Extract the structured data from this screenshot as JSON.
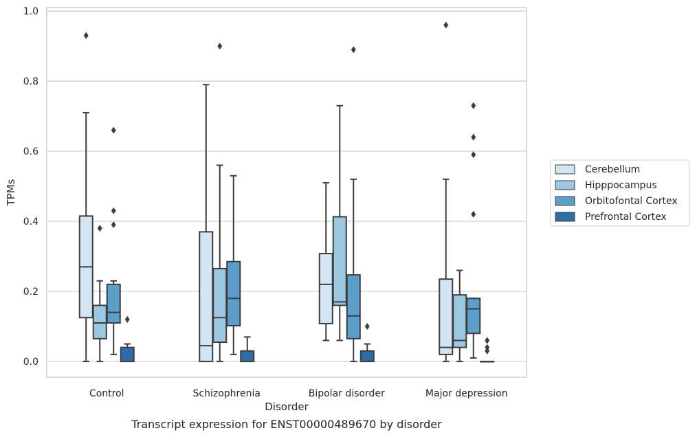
{
  "caption": "Transcript expression for ENST00000489670 by disorder",
  "chart_data": {
    "type": "box",
    "title": "",
    "xlabel": "Disorder",
    "ylabel": "TPMs",
    "ylim": [
      -0.045,
      1.01
    ],
    "yticks": [
      "0.0",
      "0.2",
      "0.4",
      "0.6",
      "0.8",
      "1.0"
    ],
    "grid": "horizontal",
    "legend_position": "right",
    "categories": [
      "Control",
      "Schizophrenia",
      "Bipolar disorder",
      "Major depression"
    ],
    "series": [
      {
        "name": "Cerebellum",
        "color": "#d3e4f3",
        "boxes": [
          {
            "whislo": 0.0,
            "q1": 0.125,
            "med": 0.27,
            "q3": 0.415,
            "whishi": 0.71,
            "fliers": [
              0.93
            ]
          },
          {
            "whislo": 0.0,
            "q1": 0.0,
            "med": 0.045,
            "q3": 0.37,
            "whishi": 0.79,
            "fliers": []
          },
          {
            "whislo": 0.06,
            "q1": 0.108,
            "med": 0.22,
            "q3": 0.308,
            "whishi": 0.51,
            "fliers": []
          },
          {
            "whislo": 0.0,
            "q1": 0.02,
            "med": 0.04,
            "q3": 0.235,
            "whishi": 0.52,
            "fliers": [
              0.96
            ]
          }
        ]
      },
      {
        "name": "Hipppocampus",
        "color": "#9cc7e0",
        "boxes": [
          {
            "whislo": 0.0,
            "q1": 0.065,
            "med": 0.11,
            "q3": 0.16,
            "whishi": 0.23,
            "fliers": [
              0.38
            ]
          },
          {
            "whislo": 0.0,
            "q1": 0.055,
            "med": 0.125,
            "q3": 0.265,
            "whishi": 0.56,
            "fliers": [
              0.9
            ]
          },
          {
            "whislo": 0.06,
            "q1": 0.16,
            "med": 0.17,
            "q3": 0.413,
            "whishi": 0.73,
            "fliers": []
          },
          {
            "whislo": 0.0,
            "q1": 0.04,
            "med": 0.06,
            "q3": 0.19,
            "whishi": 0.26,
            "fliers": []
          }
        ]
      },
      {
        "name": "Orbitofontal Cortex",
        "color": "#5a9ec9",
        "boxes": [
          {
            "whislo": 0.02,
            "q1": 0.11,
            "med": 0.14,
            "q3": 0.22,
            "whishi": 0.23,
            "fliers": [
              0.39,
              0.43,
              0.66
            ]
          },
          {
            "whislo": 0.02,
            "q1": 0.102,
            "med": 0.18,
            "q3": 0.285,
            "whishi": 0.53,
            "fliers": []
          },
          {
            "whislo": 0.0,
            "q1": 0.065,
            "med": 0.13,
            "q3": 0.247,
            "whishi": 0.52,
            "fliers": [
              0.89
            ]
          },
          {
            "whislo": 0.01,
            "q1": 0.08,
            "med": 0.15,
            "q3": 0.18,
            "whishi": 0.18,
            "fliers": [
              0.42,
              0.59,
              0.64,
              0.73
            ]
          }
        ]
      },
      {
        "name": "Prefrontal Cortex",
        "color": "#2e6ea8",
        "boxes": [
          {
            "whislo": 0.0,
            "q1": 0.0,
            "med": 0.0,
            "q3": 0.04,
            "whishi": 0.05,
            "fliers": [
              0.12
            ]
          },
          {
            "whislo": 0.0,
            "q1": 0.0,
            "med": 0.0,
            "q3": 0.03,
            "whishi": 0.07,
            "fliers": []
          },
          {
            "whislo": 0.0,
            "q1": 0.0,
            "med": 0.0,
            "q3": 0.03,
            "whishi": 0.05,
            "fliers": [
              0.1
            ]
          },
          {
            "whislo": 0.0,
            "q1": 0.0,
            "med": 0.0,
            "q3": 0.0,
            "whishi": 0.0,
            "fliers": [
              0.03,
              0.04,
              0.06
            ]
          }
        ]
      }
    ]
  }
}
